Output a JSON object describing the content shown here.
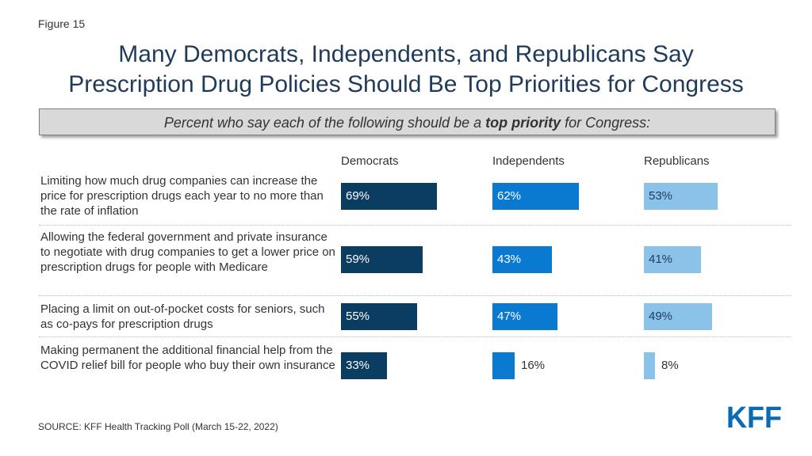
{
  "figure_label": "Figure 15",
  "title_line1": "Many Democrats, Independents, and Republicans Say",
  "title_line2": "Prescription Drug Policies Should Be Top Priorities for Congress",
  "subtitle": {
    "before": "Percent who say each of the following should be a ",
    "bold": "top priority",
    "after": " for Congress:"
  },
  "source": "SOURCE: KFF Health Tracking Poll (March 15-22, 2022)",
  "logo_text": "KFF",
  "chart_data": {
    "type": "bar",
    "title": "Percent who say each of the following should be a top priority for Congress:",
    "orientation": "horizontal",
    "categories": [
      "Limiting how much drug companies can increase the price for prescription drugs each year to no more than the rate of inflation",
      "Allowing the federal government and private insurance to negotiate with drug companies to get a lower price on prescription drugs for people with Medicare",
      "Placing a limit on out-of-pocket costs for seniors, such as co-pays for prescription drugs",
      "Making permanent the additional financial help from the COVID relief bill for people who buy their own insurance"
    ],
    "series": [
      {
        "name": "Democrats",
        "color": "#0b3c61",
        "values": [
          69,
          59,
          55,
          33
        ]
      },
      {
        "name": "Independents",
        "color": "#0a7ad1",
        "values": [
          62,
          43,
          47,
          16
        ]
      },
      {
        "name": "Republicans",
        "color": "#8ac2ea",
        "values": [
          53,
          41,
          49,
          8
        ]
      }
    ],
    "value_suffix": "%",
    "xlim": [
      0,
      100
    ]
  }
}
